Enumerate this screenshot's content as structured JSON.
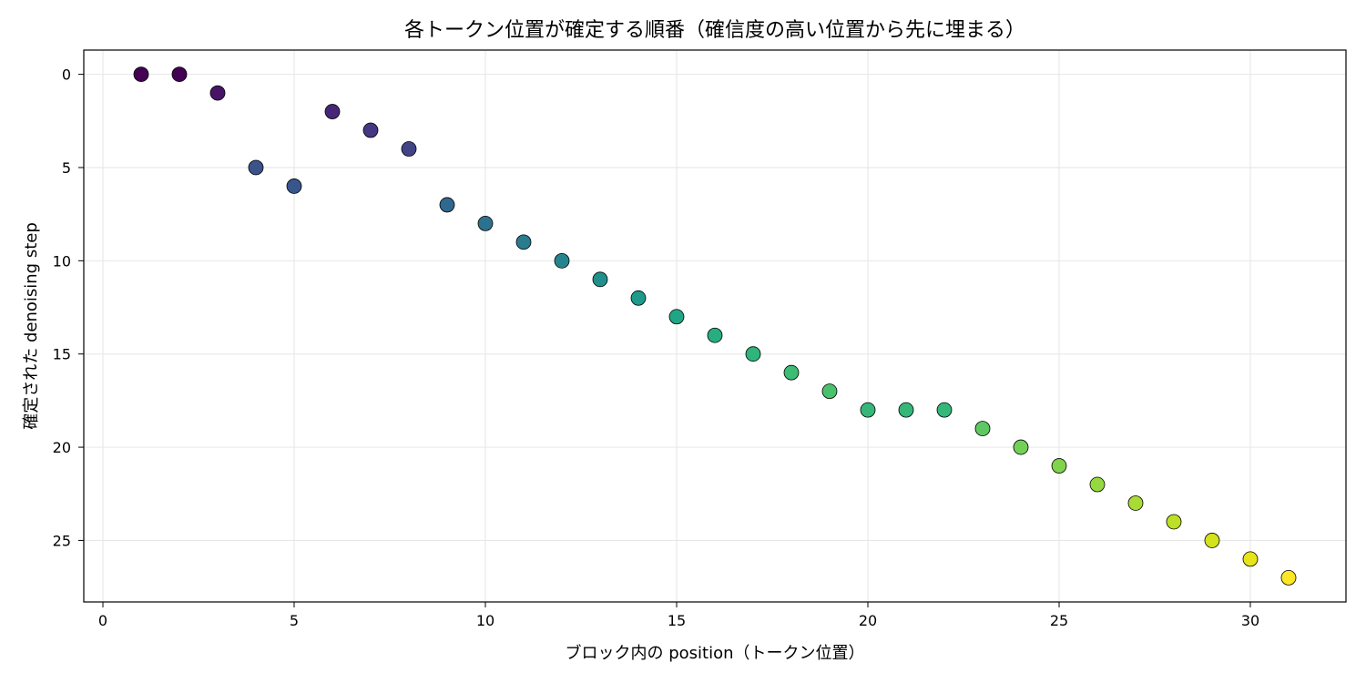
{
  "chart_data": {
    "type": "scatter",
    "title": "各トークン位置が確定する順番（確信度の高い位置から先に埋まる）",
    "xlabel": "ブロック内の position（トークン位置）",
    "ylabel": "確定された denoising step",
    "xlim": [
      -0.5,
      32.5
    ],
    "ylim": [
      28.3,
      -1.3
    ],
    "y_inverted": true,
    "grid": true,
    "legend": "none",
    "colormap": "viridis",
    "x_ticks": [
      0,
      5,
      10,
      15,
      20,
      25,
      30
    ],
    "y_ticks": [
      0,
      5,
      10,
      15,
      20,
      25
    ],
    "x_tick_labels": [
      "0",
      "5",
      "10",
      "15",
      "20",
      "25",
      "30"
    ],
    "y_tick_labels": [
      "0",
      "5",
      "10",
      "15",
      "20",
      "25"
    ],
    "x": [
      1,
      2,
      3,
      4,
      5,
      6,
      7,
      8,
      9,
      10,
      11,
      12,
      13,
      14,
      15,
      16,
      17,
      18,
      19,
      20,
      21,
      22,
      23,
      24,
      25,
      26,
      27,
      28,
      29,
      30,
      31
    ],
    "y": [
      0,
      0,
      1,
      5,
      6,
      2,
      3,
      4,
      7,
      8,
      9,
      10,
      11,
      12,
      13,
      14,
      15,
      16,
      17,
      18,
      18,
      18,
      19,
      20,
      21,
      22,
      23,
      24,
      25,
      26,
      27
    ],
    "point_colors": [
      "#440154",
      "#440154",
      "#481467",
      "#3b528b",
      "#39568c",
      "#482677",
      "#453781",
      "#414487",
      "#31688e",
      "#2c728e",
      "#297b8e",
      "#25858e",
      "#21908d",
      "#1e9a8a",
      "#21a685",
      "#27ad81",
      "#2fb47c",
      "#3dbc74",
      "#4ac16d",
      "#35b779",
      "#35b779",
      "#35b779",
      "#5ec962",
      "#73d056",
      "#80d34c",
      "#95d840",
      "#a8db34",
      "#bddf26",
      "#d2e21b",
      "#e7e419",
      "#fde725"
    ]
  }
}
